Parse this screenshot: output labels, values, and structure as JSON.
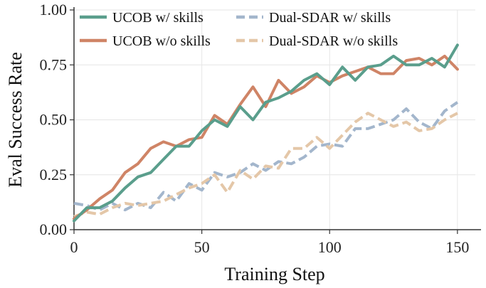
{
  "chart_data": {
    "type": "line",
    "xlabel": "Training Step",
    "ylabel": "Eval Success Rate",
    "xlim": [
      0,
      157
    ],
    "ylim": [
      0,
      1.0
    ],
    "xticks": [
      0,
      50,
      100,
      150
    ],
    "xtick_labels": [
      "0",
      "50",
      "100",
      "150"
    ],
    "yticks": [
      0,
      0.25,
      0.5,
      0.75,
      1.0
    ],
    "ytick_labels": [
      "0.00",
      "0.25",
      "0.50",
      "0.75",
      "1.00"
    ],
    "grid": true,
    "legend_position": "top",
    "x": [
      0,
      5,
      10,
      15,
      20,
      25,
      30,
      35,
      40,
      45,
      50,
      55,
      60,
      65,
      70,
      75,
      80,
      85,
      90,
      95,
      100,
      105,
      110,
      115,
      120,
      125,
      130,
      135,
      140,
      145,
      150
    ],
    "series": [
      {
        "name": "UCOB w/ skills",
        "color": "#5a9e8c",
        "dash": "solid",
        "values": [
          0.04,
          0.1,
          0.1,
          0.13,
          0.19,
          0.24,
          0.26,
          0.32,
          0.38,
          0.38,
          0.45,
          0.5,
          0.47,
          0.56,
          0.5,
          0.58,
          0.6,
          0.63,
          0.68,
          0.71,
          0.66,
          0.74,
          0.68,
          0.74,
          0.75,
          0.79,
          0.75,
          0.75,
          0.78,
          0.74,
          0.84
        ]
      },
      {
        "name": "UCOB w/o skills",
        "color": "#cf8466",
        "dash": "solid",
        "values": [
          0.05,
          0.09,
          0.14,
          0.18,
          0.26,
          0.3,
          0.37,
          0.4,
          0.38,
          0.41,
          0.42,
          0.52,
          0.48,
          0.57,
          0.65,
          0.56,
          0.68,
          0.62,
          0.65,
          0.7,
          0.67,
          0.7,
          0.72,
          0.74,
          0.71,
          0.71,
          0.77,
          0.78,
          0.75,
          0.79,
          0.73
        ]
      },
      {
        "name": "Dual-SDAR w/ skills",
        "color": "#a3b6cc",
        "dash": "dashed",
        "values": [
          0.12,
          0.11,
          0.09,
          0.12,
          0.09,
          0.12,
          0.1,
          0.17,
          0.13,
          0.21,
          0.18,
          0.26,
          0.24,
          0.26,
          0.3,
          0.27,
          0.31,
          0.3,
          0.33,
          0.38,
          0.39,
          0.38,
          0.46,
          0.46,
          0.48,
          0.5,
          0.55,
          0.49,
          0.46,
          0.54,
          0.58
        ]
      },
      {
        "name": "Dual-SDAR w/o skills",
        "color": "#e4c7a8",
        "dash": "dashed",
        "values": [
          0.06,
          0.08,
          0.07,
          0.1,
          0.12,
          0.11,
          0.12,
          0.13,
          0.16,
          0.19,
          0.21,
          0.25,
          0.17,
          0.27,
          0.23,
          0.29,
          0.28,
          0.37,
          0.37,
          0.42,
          0.37,
          0.43,
          0.49,
          0.53,
          0.5,
          0.47,
          0.49,
          0.45,
          0.46,
          0.5,
          0.53
        ]
      }
    ]
  }
}
